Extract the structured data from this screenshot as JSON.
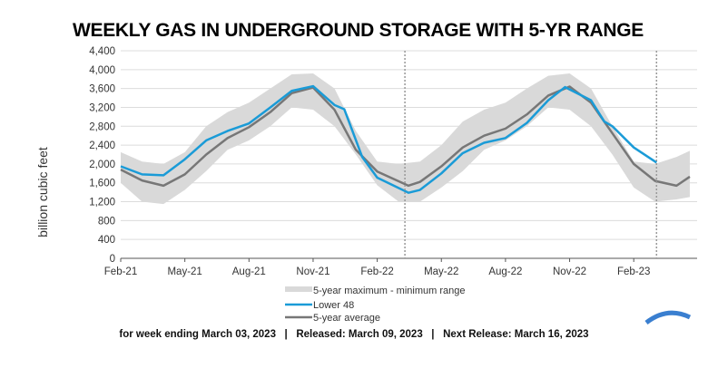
{
  "chart_data": {
    "type": "area",
    "title": "WEEKLY GAS IN UNDERGROUND STORAGE WITH 5-YR RANGE",
    "xlabel": "",
    "ylabel": "billion cubic feet",
    "ylim": [
      0,
      4400
    ],
    "yticks": [
      "0",
      "400",
      "800",
      "1,200",
      "1,600",
      "2,000",
      "2,400",
      "2,800",
      "3,200",
      "3,600",
      "4,000",
      "4,400"
    ],
    "xticks": [
      {
        "label": "Feb-21",
        "date": "2021-02-01"
      },
      {
        "label": "May-21",
        "date": "2021-05-01"
      },
      {
        "label": "Aug-21",
        "date": "2021-08-01"
      },
      {
        "label": "Nov-21",
        "date": "2021-11-01"
      },
      {
        "label": "Feb-22",
        "date": "2022-02-01"
      },
      {
        "label": "May-22",
        "date": "2022-05-01"
      },
      {
        "label": "Aug-22",
        "date": "2022-08-01"
      },
      {
        "label": "Nov-22",
        "date": "2022-11-01"
      },
      {
        "label": "Feb-23",
        "date": "2023-02-01"
      }
    ],
    "grid": true,
    "legend_placement": "bottom",
    "reference_lines": [
      "2022-03-10",
      "2023-03-03"
    ],
    "series": [
      {
        "name": "5-year maximum - minimum range",
        "color": "#d9d9d9",
        "dates": [
          "2021-02-01",
          "2021-03-01",
          "2021-04-01",
          "2021-05-01",
          "2021-06-01",
          "2021-07-01",
          "2021-08-01",
          "2021-09-01",
          "2021-10-01",
          "2021-11-01",
          "2021-12-01",
          "2022-01-01",
          "2022-02-01",
          "2022-03-01",
          "2022-04-01",
          "2022-05-01",
          "2022-06-01",
          "2022-07-01",
          "2022-08-01",
          "2022-09-01",
          "2022-10-01",
          "2022-11-01",
          "2022-12-01",
          "2023-01-01",
          "2023-02-01",
          "2023-03-01",
          "2023-04-01",
          "2023-04-20"
        ],
        "max": [
          2250,
          2050,
          2000,
          2250,
          2800,
          3100,
          3300,
          3600,
          3900,
          3920,
          3600,
          2700,
          2050,
          2000,
          2050,
          2400,
          2900,
          3150,
          3300,
          3600,
          3870,
          3920,
          3600,
          2800,
          2050,
          2000,
          2150,
          2280
        ],
        "min": [
          1600,
          1200,
          1150,
          1450,
          1850,
          2300,
          2500,
          2800,
          3200,
          3150,
          2800,
          2200,
          1550,
          1200,
          1200,
          1500,
          1850,
          2300,
          2500,
          2800,
          3200,
          3150,
          2800,
          2200,
          1500,
          1200,
          1250,
          1300
        ]
      },
      {
        "name": "Lower 48",
        "color": "#1a9bd7",
        "dates": [
          "2021-02-01",
          "2021-03-01",
          "2021-04-01",
          "2021-05-01",
          "2021-06-01",
          "2021-07-01",
          "2021-08-01",
          "2021-09-01",
          "2021-10-01",
          "2021-11-01",
          "2021-12-01",
          "2021-12-15",
          "2022-01-10",
          "2022-02-01",
          "2022-03-15",
          "2022-04-01",
          "2022-05-01",
          "2022-06-01",
          "2022-07-01",
          "2022-08-01",
          "2022-09-01",
          "2022-10-01",
          "2022-10-25",
          "2022-12-01",
          "2022-12-20",
          "2023-01-01",
          "2023-02-01",
          "2023-03-03"
        ],
        "values": [
          1950,
          1780,
          1760,
          2100,
          2500,
          2700,
          2860,
          3200,
          3550,
          3650,
          3250,
          3160,
          2150,
          1710,
          1390,
          1450,
          1800,
          2230,
          2450,
          2550,
          2870,
          3350,
          3630,
          3350,
          2900,
          2800,
          2350,
          2030
        ]
      },
      {
        "name": "5-year average",
        "color": "#777777",
        "dates": [
          "2021-02-01",
          "2021-03-01",
          "2021-04-01",
          "2021-05-01",
          "2021-06-01",
          "2021-07-01",
          "2021-08-01",
          "2021-09-01",
          "2021-10-01",
          "2021-11-01",
          "2021-12-01",
          "2022-01-01",
          "2022-02-01",
          "2022-03-15",
          "2022-04-01",
          "2022-05-01",
          "2022-06-01",
          "2022-07-01",
          "2022-08-01",
          "2022-09-01",
          "2022-10-01",
          "2022-11-01",
          "2022-12-01",
          "2023-01-01",
          "2023-02-01",
          "2023-03-01",
          "2023-04-01",
          "2023-04-20"
        ],
        "values": [
          1880,
          1650,
          1540,
          1780,
          2200,
          2550,
          2780,
          3100,
          3500,
          3620,
          3150,
          2300,
          1840,
          1540,
          1620,
          1950,
          2350,
          2600,
          2750,
          3050,
          3450,
          3640,
          3300,
          2650,
          2000,
          1640,
          1540,
          1730
        ]
      }
    ]
  },
  "footer": "for week ending March 03, 2023   |   Released: March 09, 2023   |   Next Release: March 16, 2023"
}
